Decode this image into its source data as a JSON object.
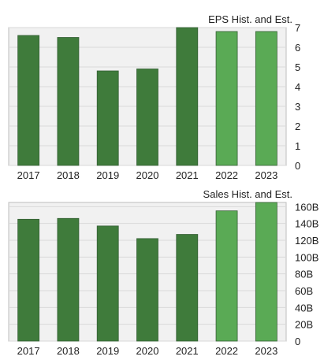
{
  "chart_data": [
    {
      "type": "bar",
      "title": "EPS Hist. and Est.",
      "categories": [
        "2017",
        "2018",
        "2019",
        "2020",
        "2021",
        "2022",
        "2023"
      ],
      "values": [
        6.6,
        6.5,
        4.8,
        4.9,
        7.0,
        6.8,
        6.8
      ],
      "estimate_flags": [
        false,
        false,
        false,
        false,
        false,
        true,
        true
      ],
      "ylim": [
        0,
        7
      ],
      "yticks": [
        0,
        1,
        2,
        3,
        4,
        5,
        6,
        7
      ],
      "ytick_labels": [
        "0",
        "1",
        "2",
        "3",
        "4",
        "5",
        "6",
        "7"
      ],
      "grid": true,
      "colors": {
        "historical": "#3f7b3b",
        "estimate": "#5aaa55"
      }
    },
    {
      "type": "bar",
      "title": "Sales Hist. and Est.",
      "categories": [
        "2017",
        "2018",
        "2019",
        "2020",
        "2021",
        "2022",
        "2023"
      ],
      "values": [
        145,
        146,
        137,
        122,
        127,
        155,
        165
      ],
      "estimate_flags": [
        false,
        false,
        false,
        false,
        false,
        true,
        true
      ],
      "ylim": [
        0,
        165
      ],
      "yticks": [
        0,
        20,
        40,
        60,
        80,
        100,
        120,
        140,
        160
      ],
      "ytick_labels": [
        "0",
        "20B",
        "40B",
        "60B",
        "80B",
        "100B",
        "120B",
        "140B",
        "160B"
      ],
      "grid": true,
      "colors": {
        "historical": "#3f7b3b",
        "estimate": "#5aaa55"
      }
    }
  ]
}
